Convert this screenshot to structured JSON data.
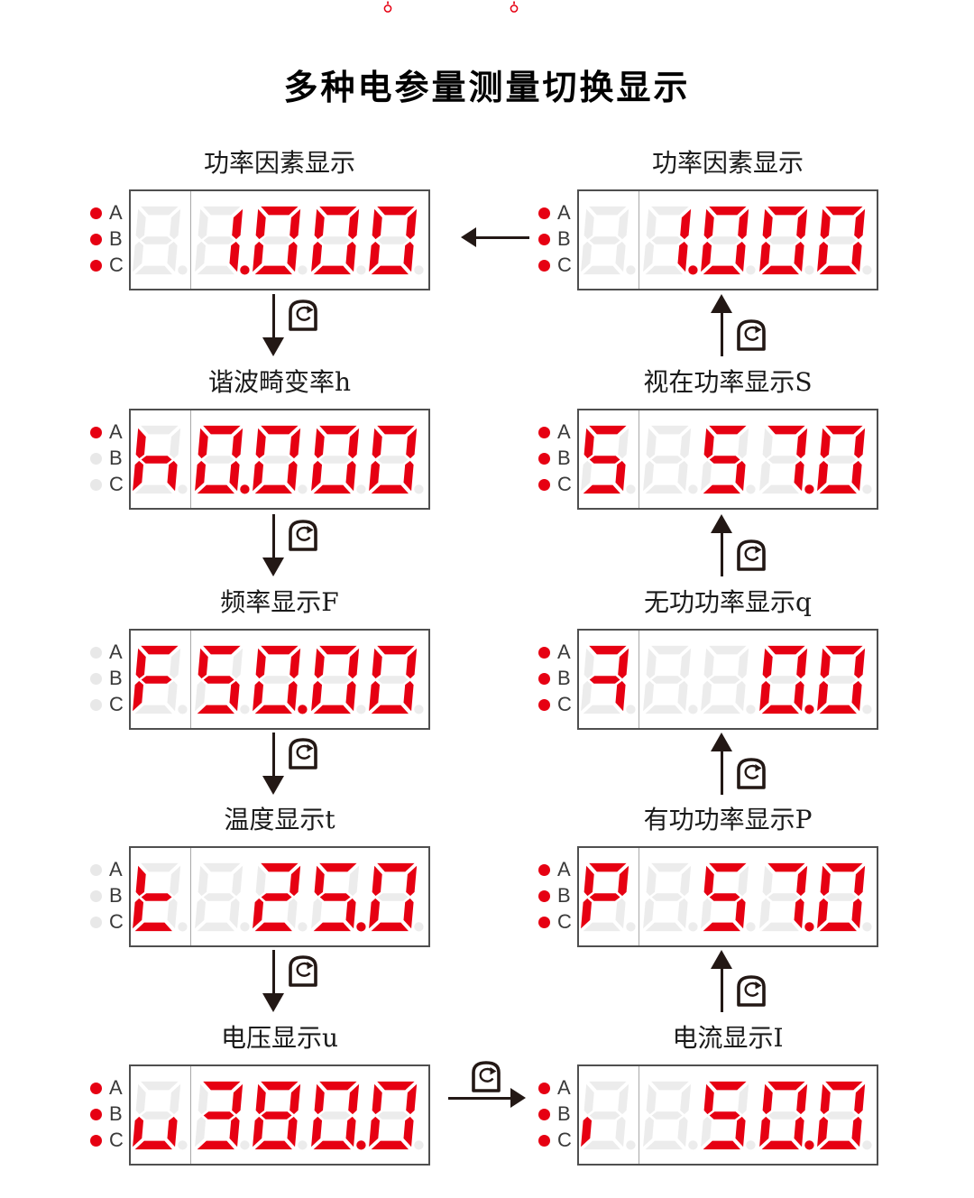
{
  "title": "多种电参量测量切换显示",
  "indicator_labels": [
    "A",
    "B",
    "C"
  ],
  "colors": {
    "segment_on": "#e60012",
    "segment_off": "#ececec",
    "indicator_off": "#e8e8e8",
    "ink": "#231815",
    "panel_border": "#4f4f4f",
    "divider": "#a8a8a8"
  },
  "displays": {
    "left": [
      {
        "label": "功率因素显示",
        "reading": "1.000",
        "indicators": [
          true,
          true,
          true
        ],
        "left_char": " ",
        "digits": [
          "1.",
          "0",
          "0",
          "0"
        ]
      },
      {
        "label": "谐波畸变率h",
        "reading": "h0.000",
        "indicators": [
          true,
          false,
          false
        ],
        "left_char": "h",
        "digits": [
          "0.",
          "0",
          "0",
          "0"
        ]
      },
      {
        "label": "频率显示F",
        "reading": "F50.00",
        "indicators": [
          false,
          false,
          false
        ],
        "left_char": "F",
        "digits": [
          "5",
          "0.",
          "0",
          "0"
        ]
      },
      {
        "label": "温度显示t",
        "reading": "t 25.0",
        "indicators": [
          false,
          false,
          false
        ],
        "left_char": "t",
        "digits": [
          " ",
          "2",
          "5.",
          "0"
        ]
      },
      {
        "label": "电压显示u",
        "reading": "u380.0",
        "indicators": [
          true,
          true,
          true
        ],
        "left_char": "u",
        "digits": [
          "3",
          "8",
          "0.",
          "0"
        ]
      }
    ],
    "right": [
      {
        "label": "功率因素显示",
        "reading": "1.000",
        "indicators": [
          true,
          true,
          true
        ],
        "left_char": " ",
        "digits": [
          "1.",
          "0",
          "0",
          "0"
        ]
      },
      {
        "label": "视在功率显示S",
        "reading": "S 57.0",
        "indicators": [
          true,
          true,
          true
        ],
        "left_char": "S",
        "digits": [
          " ",
          "5",
          "7.",
          "0"
        ]
      },
      {
        "label": "无功功率显示q",
        "reading": "q 0.0",
        "indicators": [
          true,
          true,
          true
        ],
        "left_char": "q",
        "digits": [
          " ",
          " ",
          "0.",
          "0"
        ]
      },
      {
        "label": "有功功率显示P",
        "reading": "P 57.0",
        "indicators": [
          true,
          true,
          true
        ],
        "left_char": "P",
        "digits": [
          " ",
          "5",
          "7.",
          "0"
        ]
      },
      {
        "label": "电流显示I",
        "reading": "I 50.0",
        "indicators": [
          true,
          true,
          true
        ],
        "left_char": "i",
        "digits": [
          " ",
          "5",
          "0.",
          "0"
        ]
      }
    ]
  }
}
